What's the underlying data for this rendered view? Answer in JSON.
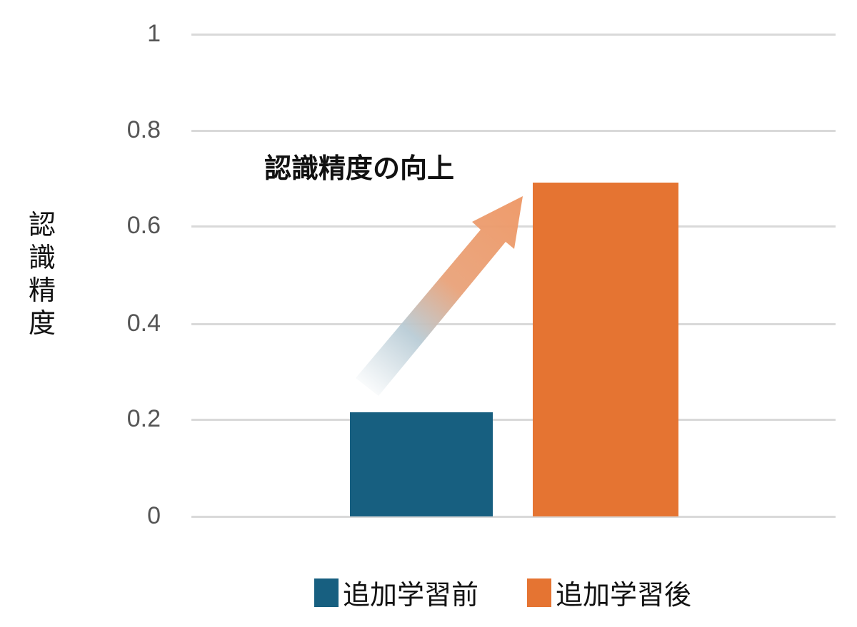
{
  "chart_data": {
    "type": "bar",
    "title": "",
    "xlabel": "",
    "ylabel": "認識精度",
    "ylim": [
      0,
      1
    ],
    "yticks": [
      "1",
      "0.8",
      "0.6",
      "0.4",
      "0.2",
      "0"
    ],
    "grid": true,
    "legend_position": "bottom",
    "categories": [
      ""
    ],
    "series": [
      {
        "name": "追加学習前",
        "values": [
          0.216
        ],
        "color": "#175f80"
      },
      {
        "name": "追加学習後",
        "values": [
          0.692
        ],
        "color": "#e57432"
      }
    ],
    "annotations": [
      {
        "text": "認識精度の向上",
        "type": "arrow",
        "from": "追加学習前",
        "to": "追加学習後"
      }
    ]
  },
  "axis": {
    "ylabel_chars": [
      "認",
      "識",
      "精",
      "度"
    ],
    "ticks": [
      {
        "label": "1",
        "value": 1
      },
      {
        "label": "0.8",
        "value": 0.8
      },
      {
        "label": "0.6",
        "value": 0.6
      },
      {
        "label": "0.4",
        "value": 0.4
      },
      {
        "label": "0.2",
        "value": 0.2
      },
      {
        "label": "0",
        "value": 0
      }
    ]
  },
  "annotation": {
    "text": "認識精度の向上"
  },
  "legend": {
    "items": [
      {
        "label": "追加学習前",
        "color": "#175f80"
      },
      {
        "label": "追加学習後",
        "color": "#e57432"
      }
    ]
  }
}
